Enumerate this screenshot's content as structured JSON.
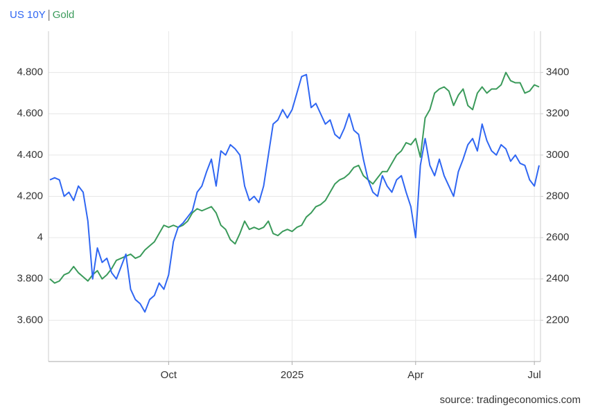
{
  "chart_data": {
    "type": "line",
    "source": "source: tradingeconomics.com",
    "categories": [
      null,
      null,
      null,
      null,
      null,
      null,
      null,
      null,
      null,
      null,
      null,
      null,
      null,
      null,
      null,
      null,
      null,
      null,
      null,
      null,
      null,
      null,
      null,
      null,
      null,
      "Oct",
      null,
      null,
      null,
      null,
      null,
      null,
      null,
      null,
      null,
      null,
      null,
      null,
      null,
      null,
      null,
      null,
      null,
      null,
      null,
      null,
      null,
      null,
      null,
      null,
      null,
      "2025",
      null,
      null,
      null,
      null,
      null,
      null,
      null,
      null,
      null,
      null,
      null,
      null,
      null,
      null,
      null,
      null,
      null,
      null,
      null,
      null,
      null,
      null,
      null,
      null,
      null,
      "Apr",
      null,
      null,
      null,
      null,
      null,
      null,
      null,
      null,
      null,
      null,
      null,
      null,
      null,
      null,
      null,
      null,
      null,
      null,
      null,
      null,
      null,
      null,
      null,
      null,
      "Jul",
      null
    ],
    "series": [
      {
        "name": "US 10Y",
        "color": "#2f66f2",
        "axis": "y",
        "values": [
          4.28,
          4.29,
          4.28,
          4.2,
          4.22,
          4.18,
          4.25,
          4.22,
          4.08,
          3.8,
          3.95,
          3.88,
          3.9,
          3.83,
          3.8,
          3.86,
          3.92,
          3.75,
          3.7,
          3.68,
          3.64,
          3.7,
          3.72,
          3.78,
          3.75,
          3.82,
          3.98,
          4.05,
          4.07,
          4.1,
          4.13,
          4.22,
          4.25,
          4.32,
          4.38,
          4.25,
          4.42,
          4.4,
          4.45,
          4.43,
          4.4,
          4.25,
          4.18,
          4.2,
          4.17,
          4.25,
          4.4,
          4.55,
          4.57,
          4.62,
          4.58,
          4.62,
          4.7,
          4.78,
          4.79,
          4.63,
          4.65,
          4.6,
          4.55,
          4.57,
          4.5,
          4.48,
          4.53,
          4.6,
          4.52,
          4.5,
          4.38,
          4.28,
          4.22,
          4.2,
          4.3,
          4.25,
          4.22,
          4.28,
          4.3,
          4.22,
          4.15,
          4.0,
          4.35,
          4.48,
          4.35,
          4.3,
          4.38,
          4.3,
          4.25,
          4.2,
          4.32,
          4.38,
          4.45,
          4.48,
          4.42,
          4.55,
          4.47,
          4.42,
          4.4,
          4.45,
          4.43,
          4.37,
          4.4,
          4.36,
          4.35,
          4.28,
          4.25,
          4.35
        ]
      },
      {
        "name": "Gold",
        "color": "#3a9a5a",
        "axis": "y2",
        "values": [
          2400,
          2380,
          2390,
          2420,
          2430,
          2460,
          2430,
          2410,
          2390,
          2420,
          2440,
          2400,
          2420,
          2450,
          2490,
          2500,
          2510,
          2520,
          2500,
          2510,
          2540,
          2560,
          2580,
          2620,
          2660,
          2650,
          2660,
          2650,
          2660,
          2680,
          2720,
          2740,
          2730,
          2740,
          2750,
          2720,
          2660,
          2640,
          2590,
          2570,
          2620,
          2680,
          2640,
          2650,
          2640,
          2650,
          2680,
          2620,
          2610,
          2630,
          2640,
          2630,
          2650,
          2660,
          2700,
          2720,
          2750,
          2760,
          2780,
          2820,
          2860,
          2880,
          2890,
          2910,
          2940,
          2950,
          2900,
          2880,
          2860,
          2890,
          2920,
          2920,
          2960,
          3000,
          3020,
          3060,
          3050,
          3080,
          2990,
          3180,
          3220,
          3300,
          3320,
          3330,
          3310,
          3240,
          3290,
          3320,
          3240,
          3220,
          3300,
          3330,
          3300,
          3320,
          3320,
          3340,
          3400,
          3360,
          3350,
          3350,
          3300,
          3310,
          3340,
          3330
        ]
      }
    ],
    "ylim": [
      3.4,
      5.0
    ],
    "yticks": [
      {
        "value": 3.6,
        "label": "3.600"
      },
      {
        "value": 3.8,
        "label": "3.800"
      },
      4,
      {
        "value": 4.2,
        "label": "4.200"
      },
      {
        "value": 4.4,
        "label": "4.400"
      },
      {
        "value": 4.6,
        "label": "4.600"
      },
      {
        "value": 4.8,
        "label": "4.800"
      }
    ],
    "y2lim": [
      2000,
      3600
    ],
    "y2ticks": [
      2200,
      2400,
      2600,
      2800,
      3000,
      3200,
      3400
    ],
    "grid": true
  }
}
